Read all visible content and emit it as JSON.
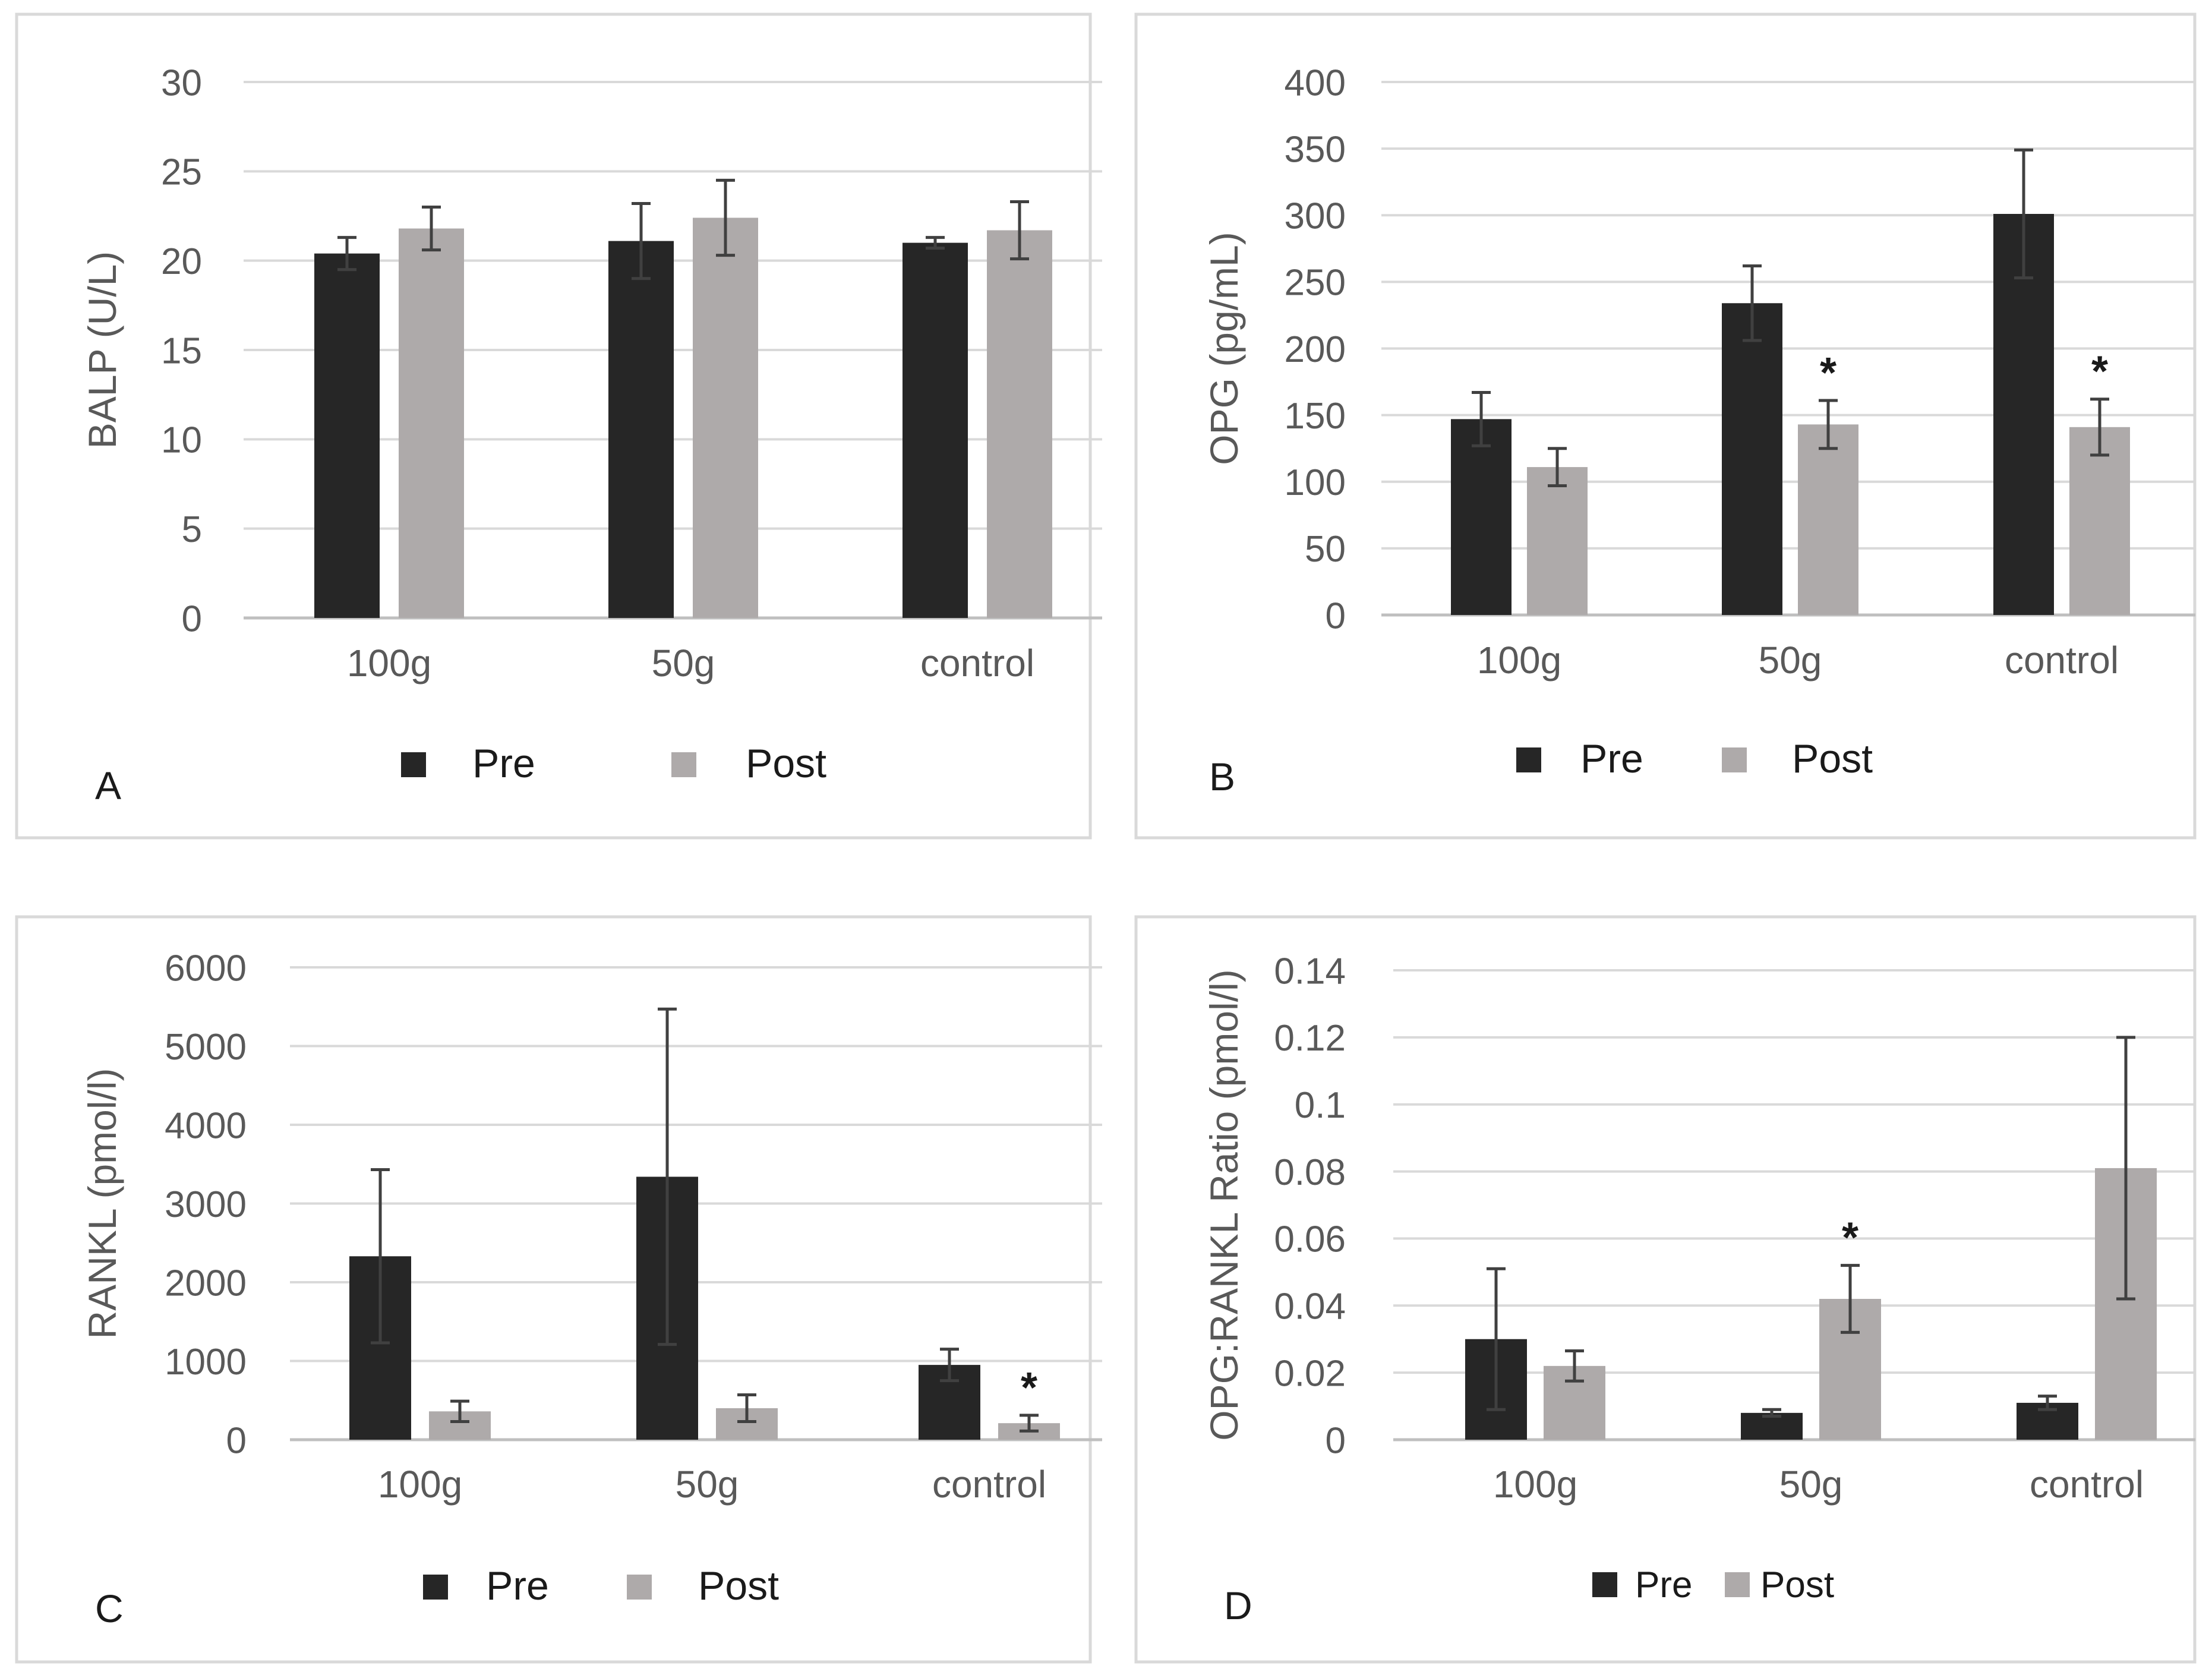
{
  "figure": {
    "colors": {
      "pre": "#262626",
      "post": "#aeaaaa",
      "grid": "#d9d9d9",
      "axis": "#bfbfbf",
      "text": "#595959",
      "border": "#d9d9d9",
      "error": "#404040"
    }
  },
  "chart_data": [
    {
      "type": "bar",
      "panel_label": "A",
      "title": "",
      "xlabel": "",
      "ylabel": "BALP (U/L)",
      "ylim": [
        0,
        30
      ],
      "yticks": [
        0,
        5,
        10,
        15,
        20,
        25,
        30
      ],
      "ytick_labels": [
        "0",
        "5",
        "10",
        "15",
        "20",
        "25",
        "30"
      ],
      "categories": [
        "100g",
        "50g",
        "control"
      ],
      "series": [
        {
          "name": "Pre",
          "values": [
            20.4,
            21.1,
            21.0
          ],
          "errors": [
            0.9,
            2.1,
            0.3
          ]
        },
        {
          "name": "Post",
          "values": [
            21.8,
            22.4,
            21.7
          ],
          "errors": [
            1.2,
            2.1,
            1.6
          ]
        }
      ],
      "annotations": [],
      "legend": "bottom"
    },
    {
      "type": "bar",
      "panel_label": "B",
      "title": "",
      "xlabel": "",
      "ylabel": "OPG (pg/mL)",
      "ylim": [
        0,
        400
      ],
      "yticks": [
        0,
        50,
        100,
        150,
        200,
        250,
        300,
        350,
        400
      ],
      "ytick_labels": [
        "0",
        "50",
        "100",
        "150",
        "200",
        "250",
        "300",
        "350",
        "400"
      ],
      "categories": [
        "100g",
        "50g",
        "control"
      ],
      "series": [
        {
          "name": "Pre",
          "values": [
            147,
            234,
            301
          ],
          "errors": [
            20,
            28,
            48
          ]
        },
        {
          "name": "Post",
          "values": [
            111,
            143,
            141
          ],
          "errors": [
            14,
            18,
            21
          ]
        }
      ],
      "annotations": [
        {
          "text": "*",
          "category": 1,
          "series": 1
        },
        {
          "text": "*",
          "category": 2,
          "series": 1
        }
      ],
      "legend": "bottom"
    },
    {
      "type": "bar",
      "panel_label": "C",
      "title": "",
      "xlabel": "",
      "ylabel": "RANKL (pmol/l)",
      "ylim": [
        0,
        6000
      ],
      "yticks": [
        0,
        1000,
        2000,
        3000,
        4000,
        5000,
        6000
      ],
      "ytick_labels": [
        "0",
        "1000",
        "2000",
        "3000",
        "4000",
        "5000",
        "6000"
      ],
      "categories": [
        "100g",
        "50g",
        "control"
      ],
      "series": [
        {
          "name": "Pre",
          "values": [
            2330,
            3340,
            950
          ],
          "errors": [
            1100,
            2130,
            200
          ]
        },
        {
          "name": "Post",
          "values": [
            360,
            400,
            210
          ],
          "errors": [
            130,
            170,
            100
          ]
        }
      ],
      "annotations": [
        {
          "text": "*",
          "category": 2,
          "series": 1
        }
      ],
      "legend": "bottom"
    },
    {
      "type": "bar",
      "panel_label": "D",
      "title": "",
      "xlabel": "",
      "ylabel": "OPG:RANKL Ratio (pmol/l)",
      "ylim": [
        0,
        0.14
      ],
      "yticks": [
        0,
        0.02,
        0.04,
        0.06,
        0.08,
        0.1,
        0.12,
        0.14
      ],
      "ytick_labels": [
        "0",
        "0.02",
        "0.04",
        "0.06",
        "0.08",
        "0.1",
        "0.12",
        "0.14"
      ],
      "categories": [
        "100g",
        "50g",
        "control"
      ],
      "series": [
        {
          "name": "Pre",
          "values": [
            0.03,
            0.008,
            0.011
          ],
          "errors": [
            0.021,
            0.001,
            0.002
          ]
        },
        {
          "name": "Post",
          "values": [
            0.022,
            0.042,
            0.081
          ],
          "errors": [
            0.0045,
            0.01,
            0.039
          ]
        }
      ],
      "annotations": [
        {
          "text": "*",
          "category": 1,
          "series": 1
        }
      ],
      "legend": "bottom"
    }
  ]
}
